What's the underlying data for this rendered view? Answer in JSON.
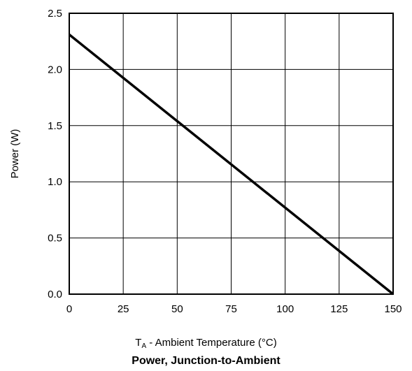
{
  "chart_data": {
    "type": "line",
    "title": "Power, Junction-to-Ambient",
    "xlabel": {
      "main": "T",
      "subscript": "A",
      "rest": " - Ambient Temperature (°C)"
    },
    "ylabel": "Power (W)",
    "xlim": [
      0,
      150
    ],
    "ylim": [
      0,
      2.5
    ],
    "x_ticks": [
      "0",
      "25",
      "50",
      "75",
      "100",
      "125",
      "150"
    ],
    "y_ticks": [
      "0.0",
      "0.5",
      "1.0",
      "1.5",
      "2.0",
      "2.5"
    ],
    "grid": true,
    "series": [
      {
        "x": [
          0,
          150
        ],
        "y": [
          2.31,
          0
        ]
      }
    ],
    "line_color": "#000000"
  }
}
